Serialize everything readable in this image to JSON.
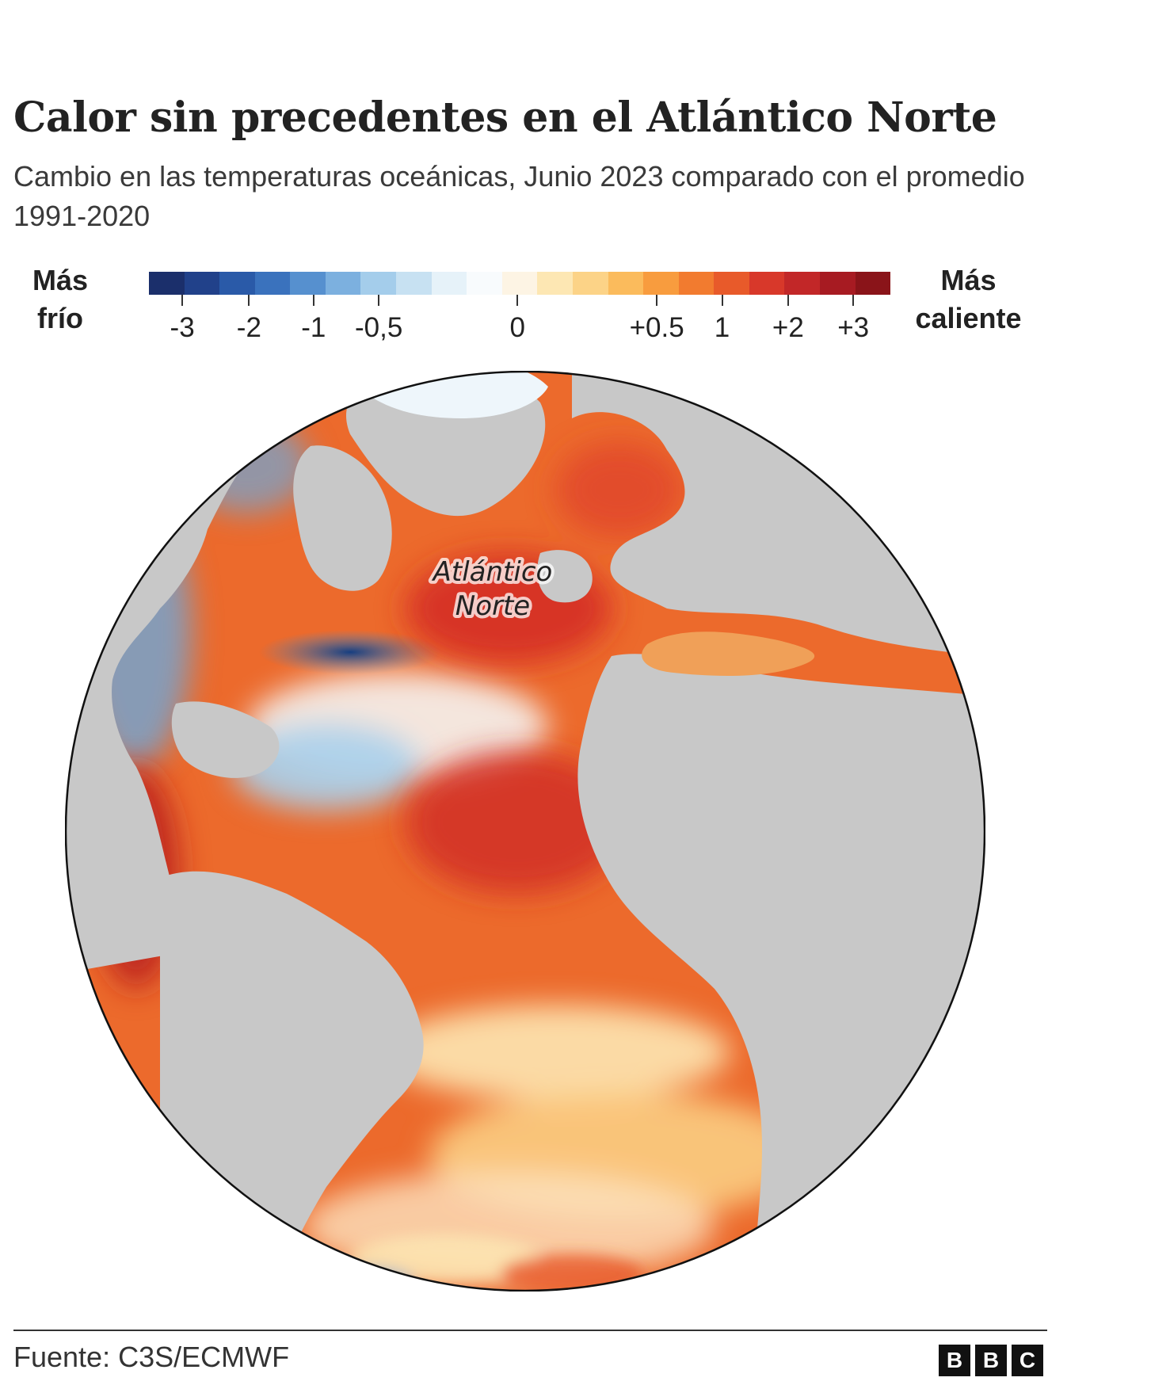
{
  "title": "Calor sin precedentes en el Atlántico Norte",
  "subtitle": "Cambio en las temperaturas oceánicas, Junio 2023 comparado con el promedio 1991-2020",
  "legend": {
    "left_line1": "Más",
    "left_line2": "frío",
    "right_line1": "Más",
    "right_line2": "caliente",
    "colors": [
      "#1b2f6b",
      "#21418a",
      "#2a5aa8",
      "#3a72bd",
      "#5690cf",
      "#7cb0df",
      "#a4cdeb",
      "#c7e1f2",
      "#e6f2f9",
      "#f8fbfd",
      "#fdf4e4",
      "#fde7b3",
      "#fcd387",
      "#fbbb5c",
      "#f89c3e",
      "#f27b2f",
      "#e85a2a",
      "#d8382a",
      "#c22728",
      "#a71b22",
      "#8a1419"
    ],
    "ticks": [
      {
        "label": "-3",
        "pos": 0.045
      },
      {
        "label": "-2",
        "pos": 0.135
      },
      {
        "label": "-1",
        "pos": 0.222
      },
      {
        "label": "-0,5",
        "pos": 0.31
      },
      {
        "label": "0",
        "pos": 0.497
      },
      {
        "label": "+0.5",
        "pos": 0.685
      },
      {
        "label": "1",
        "pos": 0.773
      },
      {
        "label": "+2",
        "pos": 0.862
      },
      {
        "label": "+3",
        "pos": 0.95
      }
    ]
  },
  "map": {
    "annotation_line1": "Atlántico",
    "annotation_line2": "Norte",
    "land_color": "#c8c8c8",
    "ocean_warm_color": "#ec6a2c",
    "ocean_hot_color": "#d32f24",
    "ocean_cool_color": "#6ea8d8",
    "ocean_cold_color": "#1c4a8f",
    "ice_color": "#eef6fb"
  },
  "footer": {
    "source": "Fuente: C3S/ECMWF",
    "logo_letters": [
      "B",
      "B",
      "C"
    ]
  }
}
